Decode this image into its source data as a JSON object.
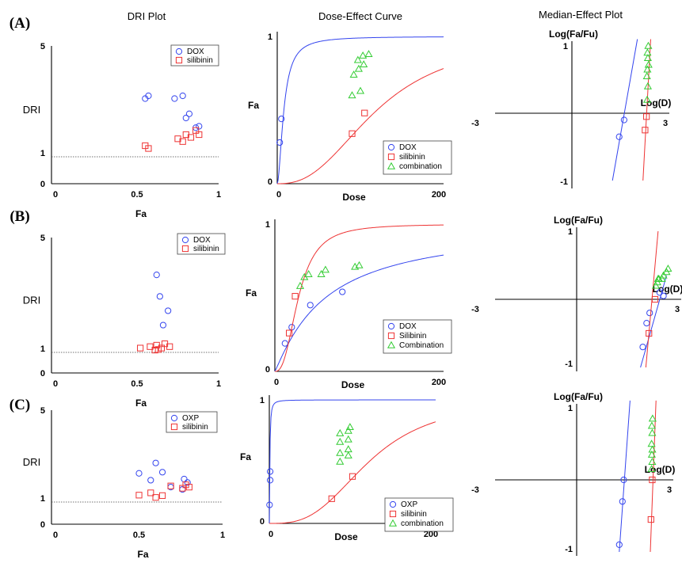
{
  "colors": {
    "DOX": "#3344ee",
    "OXP": "#3344ee",
    "silibinin": "#ee3333",
    "combination": "#33cc33"
  },
  "titles": {
    "dri": "DRI Plot",
    "dose": "Dose-Effect Curve",
    "median": "Median-Effect Plot"
  },
  "rows": [
    {
      "label": "(A)",
      "dri": {
        "ylabel": "DRI",
        "xlabel": "Fa",
        "yticks": [
          "5",
          "1",
          "0"
        ],
        "xticks": [
          "0",
          "0.5",
          "1"
        ],
        "legend": [
          "DOX",
          "silibinin"
        ]
      },
      "dose": {
        "ylabel": "Fa",
        "xlabel": "Dose",
        "yticks": [
          "1",
          "0"
        ],
        "xticks": [
          "0",
          "200"
        ],
        "legend": [
          "DOX",
          "silibinin",
          "combination"
        ]
      },
      "median": {
        "ylabel": "Log(Fa/Fu)",
        "xlabel": "Log(D)",
        "yticks": [
          "1",
          "-1"
        ],
        "xticks": [
          "-3",
          "3"
        ]
      }
    },
    {
      "label": "(B)",
      "dri": {
        "ylabel": "DRI",
        "xlabel": "Fa",
        "yticks": [
          "5",
          "1",
          "0"
        ],
        "xticks": [
          "0",
          "0.5",
          "1"
        ],
        "legend": [
          "DOX",
          "silibinin"
        ]
      },
      "dose": {
        "ylabel": "Fa",
        "xlabel": "Dose",
        "yticks": [
          "1",
          "0"
        ],
        "xticks": [
          "0",
          "200"
        ],
        "legend": [
          "DOX",
          "Silibinin",
          "Combination"
        ]
      },
      "median": {
        "ylabel": "Log(Fa/Fu)",
        "xlabel": "Log(D)",
        "yticks": [
          "1",
          "-1"
        ],
        "xticks": [
          "-3",
          "3"
        ]
      }
    },
    {
      "label": "(C)",
      "dri": {
        "ylabel": "DRI",
        "xlabel": "Fa",
        "yticks": [
          "5",
          "1",
          "0"
        ],
        "xticks": [
          "0",
          "0.5",
          "1"
        ],
        "legend": [
          "OXP",
          "silibinin"
        ]
      },
      "dose": {
        "ylabel": "Fa",
        "xlabel": "Dose",
        "yticks": [
          "1",
          "0"
        ],
        "xticks": [
          "0",
          "200"
        ],
        "legend": [
          "OXP",
          "silibinin",
          "combination"
        ]
      },
      "median": {
        "ylabel": "Log(Fa/Fu)",
        "xlabel": "Log(D)",
        "yticks": [
          "1",
          "-1"
        ],
        "xticks": [
          "-3",
          "3"
        ]
      }
    }
  ],
  "chart_data": [
    {
      "panel": "A-DRI",
      "type": "scatter",
      "xlim": [
        0,
        1
      ],
      "ylim": [
        0,
        5
      ],
      "reference_line_y": 1,
      "series": [
        {
          "name": "DOX",
          "marker": "circle",
          "points": [
            [
              0.55,
              3.1
            ],
            [
              0.57,
              3.2
            ],
            [
              0.73,
              3.1
            ],
            [
              0.78,
              3.2
            ],
            [
              0.8,
              2.4
            ],
            [
              0.82,
              2.55
            ],
            [
              0.86,
              2.05
            ],
            [
              0.88,
              2.1
            ]
          ]
        },
        {
          "name": "silibinin",
          "marker": "square",
          "points": [
            [
              0.55,
              1.4
            ],
            [
              0.57,
              1.3
            ],
            [
              0.75,
              1.65
            ],
            [
              0.78,
              1.55
            ],
            [
              0.8,
              1.8
            ],
            [
              0.83,
              1.7
            ],
            [
              0.86,
              1.95
            ],
            [
              0.88,
              1.8
            ]
          ]
        }
      ]
    },
    {
      "panel": "A-Dose",
      "type": "line",
      "xlim": [
        0,
        200
      ],
      "ylim": [
        0,
        1
      ],
      "series": [
        {
          "name": "DOX",
          "dm": 8,
          "m": 1.8,
          "points": [
            [
              3,
              0.28
            ],
            [
              5,
              0.44
            ]
          ]
        },
        {
          "name": "silibinin",
          "dm": 120,
          "m": 2.5,
          "points": [
            [
              90,
              0.34
            ],
            [
              105,
              0.48
            ]
          ]
        },
        {
          "name": "combination",
          "points": [
            [
              90,
              0.6
            ],
            [
              100,
              0.63
            ],
            [
              92,
              0.74
            ],
            [
              98,
              0.78
            ],
            [
              104,
              0.81
            ],
            [
              97,
              0.84
            ],
            [
              103,
              0.87
            ],
            [
              110,
              0.88
            ]
          ]
        }
      ]
    },
    {
      "panel": "A-Median",
      "type": "line",
      "xlim": [
        -3,
        3
      ],
      "ylim": [
        -1,
        1
      ],
      "series": [
        {
          "name": "DOX",
          "points": [
            [
              -0.3,
              -0.35
            ],
            [
              0.05,
              -0.1
            ]
          ],
          "line": [
            [
              -0.78,
              -1.0
            ],
            [
              1.0,
              1.1
            ]
          ]
        },
        {
          "name": "silibinin",
          "points": [
            [
              1.55,
              -0.25
            ],
            [
              1.65,
              -0.05
            ]
          ],
          "line": [
            [
              1.4,
              -1.0
            ],
            [
              1.95,
              1.1
            ]
          ]
        },
        {
          "name": "combination",
          "points": [
            [
              1.7,
              0.2
            ],
            [
              1.75,
              0.4
            ],
            [
              1.68,
              0.55
            ],
            [
              1.72,
              0.65
            ],
            [
              1.8,
              0.72
            ],
            [
              1.75,
              0.82
            ],
            [
              1.72,
              0.9
            ],
            [
              1.78,
              1.0
            ]
          ]
        }
      ]
    },
    {
      "panel": "B-DRI",
      "type": "scatter",
      "xlim": [
        0,
        1
      ],
      "ylim": [
        0,
        5
      ],
      "reference_line_y": 1,
      "series": [
        {
          "name": "DOX",
          "marker": "circle",
          "points": [
            [
              0.62,
              3.7
            ],
            [
              0.64,
              2.95
            ],
            [
              0.69,
              2.45
            ],
            [
              0.66,
              1.95
            ]
          ]
        },
        {
          "name": "silibinin",
          "marker": "square",
          "points": [
            [
              0.52,
              1.15
            ],
            [
              0.58,
              1.2
            ],
            [
              0.62,
              1.25
            ],
            [
              0.61,
              1.08
            ],
            [
              0.63,
              1.1
            ],
            [
              0.65,
              1.15
            ],
            [
              0.67,
              1.3
            ],
            [
              0.7,
              1.2
            ]
          ]
        }
      ]
    },
    {
      "panel": "B-Dose",
      "type": "line",
      "xlim": [
        0,
        200
      ],
      "ylim": [
        0,
        1
      ],
      "series": [
        {
          "name": "DOX",
          "dm": 60,
          "m": 1.1,
          "points": [
            [
              12,
              0.19
            ],
            [
              20,
              0.3
            ],
            [
              42,
              0.45
            ],
            [
              80,
              0.54
            ]
          ]
        },
        {
          "name": "Silibinin",
          "dm": 28,
          "m": 2.6,
          "points": [
            [
              17,
              0.26
            ],
            [
              24,
              0.51
            ]
          ]
        },
        {
          "name": "Combination",
          "points": [
            [
              30,
              0.58
            ],
            [
              35,
              0.64
            ],
            [
              40,
              0.66
            ],
            [
              55,
              0.66
            ],
            [
              60,
              0.69
            ],
            [
              95,
              0.71
            ],
            [
              100,
              0.72
            ]
          ]
        }
      ]
    },
    {
      "panel": "B-Median",
      "type": "line",
      "xlim": [
        -3,
        3
      ],
      "ylim": [
        -1,
        1
      ],
      "series": [
        {
          "name": "DOX",
          "points": [
            [
              0.75,
              -0.7
            ],
            [
              1.0,
              -0.35
            ],
            [
              1.2,
              -0.2
            ],
            [
              1.85,
              0.1
            ],
            [
              2.1,
              0.05
            ]
          ],
          "line": [
            [
              0.6,
              -1.0
            ],
            [
              2.3,
              0.35
            ]
          ]
        },
        {
          "name": "Silibinin",
          "points": [
            [
              1.15,
              -0.5
            ],
            [
              1.55,
              0.0
            ]
          ],
          "line": [
            [
              0.95,
              -1.0
            ],
            [
              1.75,
              1.0
            ]
          ]
        },
        {
          "name": "Combination",
          "points": [
            [
              1.6,
              0.2
            ],
            [
              1.7,
              0.25
            ],
            [
              1.75,
              0.3
            ],
            [
              1.8,
              0.3
            ],
            [
              2.0,
              0.3
            ],
            [
              2.1,
              0.35
            ],
            [
              2.3,
              0.4
            ],
            [
              2.4,
              0.45
            ]
          ]
        }
      ]
    },
    {
      "panel": "C-DRI",
      "type": "scatter",
      "xlim": [
        0,
        1
      ],
      "ylim": [
        0,
        5
      ],
      "reference_line_y": 1,
      "series": [
        {
          "name": "OXP",
          "marker": "circle",
          "points": [
            [
              0.5,
              2.25
            ],
            [
              0.57,
              1.95
            ],
            [
              0.6,
              2.7
            ],
            [
              0.64,
              2.3
            ],
            [
              0.69,
              1.65
            ],
            [
              0.77,
              2.0
            ],
            [
              0.79,
              1.85
            ],
            [
              0.76,
              1.55
            ]
          ]
        },
        {
          "name": "silibinin",
          "marker": "square",
          "points": [
            [
              0.5,
              1.3
            ],
            [
              0.57,
              1.4
            ],
            [
              0.6,
              1.2
            ],
            [
              0.64,
              1.28
            ],
            [
              0.69,
              1.7
            ],
            [
              0.76,
              1.6
            ],
            [
              0.78,
              1.75
            ],
            [
              0.8,
              1.65
            ]
          ]
        }
      ]
    },
    {
      "panel": "C-Dose",
      "type": "line",
      "xlim": [
        0,
        200
      ],
      "ylim": [
        0,
        1
      ],
      "series": [
        {
          "name": "OXP",
          "dm": 0.6,
          "m": 1.5,
          "points": [
            [
              0.3,
              0.15
            ],
            [
              1,
              0.35
            ],
            [
              1,
              0.42
            ]
          ]
        },
        {
          "name": "silibinin",
          "dm": 120,
          "m": 3.0,
          "points": [
            [
              75,
              0.2
            ],
            [
              100,
              0.38
            ]
          ]
        },
        {
          "name": "combination",
          "points": [
            [
              85,
              0.5
            ],
            [
              85,
              0.57
            ],
            [
              85,
              0.66
            ],
            [
              85,
              0.73
            ],
            [
              95,
              0.55
            ],
            [
              95,
              0.6
            ],
            [
              95,
              0.68
            ],
            [
              95,
              0.75
            ],
            [
              97,
              0.78
            ]
          ]
        }
      ]
    },
    {
      "panel": "C-Median",
      "type": "line",
      "xlim": [
        -3,
        3
      ],
      "ylim": [
        -1,
        1
      ],
      "series": [
        {
          "name": "OXP",
          "points": [
            [
              -0.95,
              -0.9
            ],
            [
              -0.7,
              -0.3
            ],
            [
              -0.6,
              0.0
            ]
          ],
          "line": [
            [
              -0.95,
              -1.0
            ],
            [
              -0.1,
              1.1
            ]
          ]
        },
        {
          "name": "silibinin",
          "points": [
            [
              1.55,
              -0.55
            ],
            [
              1.65,
              0.0
            ]
          ],
          "line": [
            [
              1.5,
              -1.0
            ],
            [
              1.95,
              1.1
            ]
          ]
        },
        {
          "name": "combination",
          "points": [
            [
              1.6,
              0.15
            ],
            [
              1.65,
              0.25
            ],
            [
              1.62,
              0.35
            ],
            [
              1.66,
              0.42
            ],
            [
              1.6,
              0.5
            ],
            [
              1.65,
              0.65
            ],
            [
              1.62,
              0.75
            ],
            [
              1.68,
              0.85
            ]
          ]
        }
      ]
    }
  ]
}
